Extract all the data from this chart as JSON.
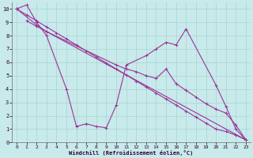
{
  "xlabel": "Windchill (Refroidissement éolien,°C)",
  "bg_color": "#c8eaea",
  "grid_color": "#a8d4d4",
  "line_color": "#993399",
  "xlim": [
    -0.5,
    23.5
  ],
  "ylim": [
    0,
    10.5
  ],
  "xticks": [
    0,
    1,
    2,
    3,
    4,
    5,
    6,
    7,
    8,
    9,
    10,
    11,
    12,
    13,
    14,
    15,
    16,
    17,
    18,
    19,
    20,
    21,
    22,
    23
  ],
  "yticks": [
    0,
    1,
    2,
    3,
    4,
    5,
    6,
    7,
    8,
    9,
    10
  ],
  "series1_x": [
    0,
    1,
    2,
    3,
    5,
    6,
    7,
    8,
    9,
    10,
    11,
    13,
    14,
    15,
    16,
    17,
    20,
    21,
    22,
    23
  ],
  "series1_y": [
    10,
    10.3,
    9.0,
    8.0,
    4.0,
    1.2,
    1.4,
    1.2,
    1.1,
    2.8,
    5.8,
    6.5,
    7.0,
    7.5,
    7.3,
    8.5,
    4.3,
    2.7,
    1.0,
    0.2
  ],
  "series2_x": [
    0,
    2,
    3,
    23
  ],
  "series2_y": [
    10,
    8.8,
    8.3,
    0.2
  ],
  "series3_x": [
    0,
    1,
    2,
    3,
    4,
    5,
    6,
    7,
    8,
    9,
    10,
    11,
    12,
    13,
    14,
    15,
    16,
    17,
    18,
    19,
    20,
    21,
    22,
    23
  ],
  "series3_y": [
    10,
    9.55,
    9.1,
    8.65,
    8.2,
    7.75,
    7.3,
    6.85,
    6.4,
    5.95,
    5.5,
    5.05,
    4.6,
    4.15,
    3.7,
    3.25,
    2.8,
    2.35,
    1.9,
    1.45,
    1.0,
    0.82,
    0.55,
    0.2
  ],
  "series4_x": [
    1,
    2,
    3,
    10,
    11,
    12,
    13,
    14,
    15,
    16,
    17,
    18,
    19,
    20,
    21,
    22,
    23
  ],
  "series4_y": [
    9.1,
    8.7,
    8.3,
    5.8,
    5.5,
    5.3,
    5.0,
    4.8,
    5.5,
    4.4,
    3.9,
    3.4,
    2.9,
    2.5,
    2.2,
    1.3,
    0.2
  ]
}
